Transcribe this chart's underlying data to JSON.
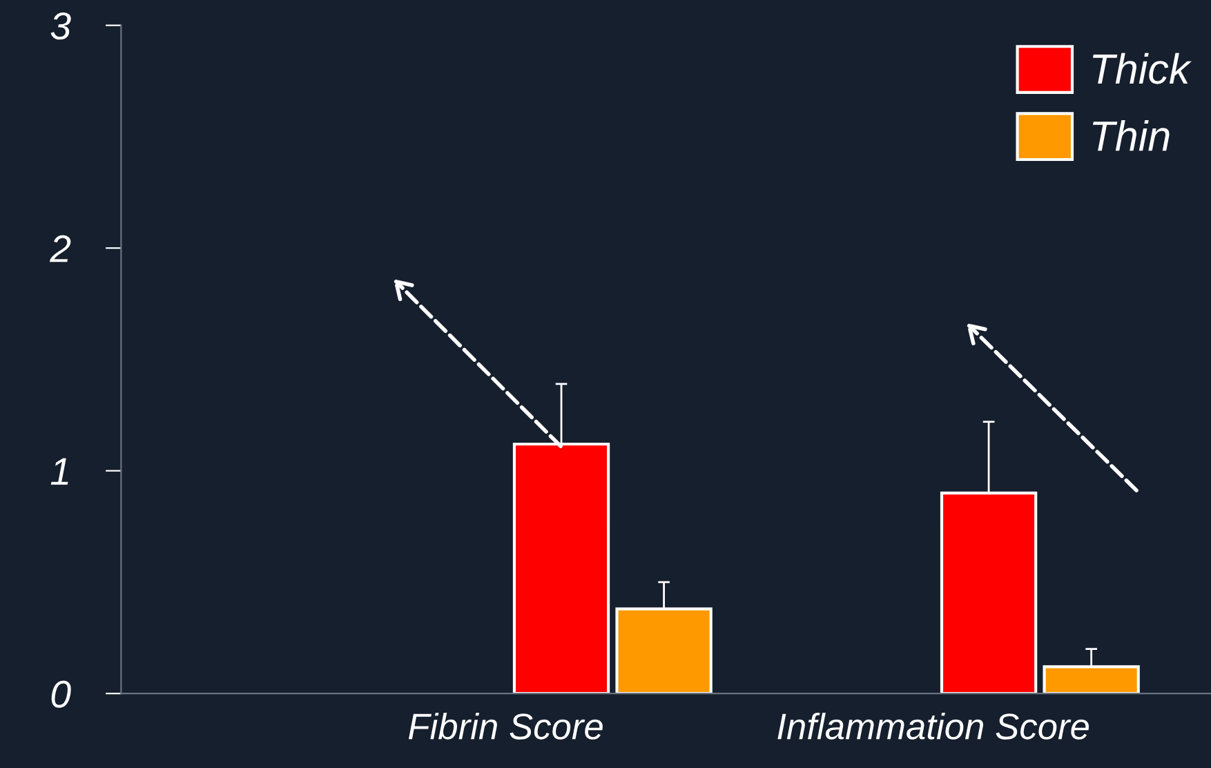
{
  "chart_data": {
    "type": "bar",
    "categories": [
      "Fibrin Score",
      "Inflammation Score"
    ],
    "series": [
      {
        "name": "Thick",
        "color": "#ff0000",
        "values": [
          1.12,
          0.9
        ],
        "errors": [
          [
            1.12,
            1.39
          ],
          [
            0.9,
            1.22
          ]
        ]
      },
      {
        "name": "Thin",
        "color": "#ff9900",
        "values": [
          0.38,
          0.12
        ],
        "errors": [
          [
            0.38,
            0.5
          ],
          [
            0.12,
            0.2
          ]
        ]
      }
    ],
    "ylim": [
      0,
      3
    ],
    "yticks": [
      0,
      1,
      2,
      3
    ],
    "grid": false,
    "legend": "top right"
  }
}
